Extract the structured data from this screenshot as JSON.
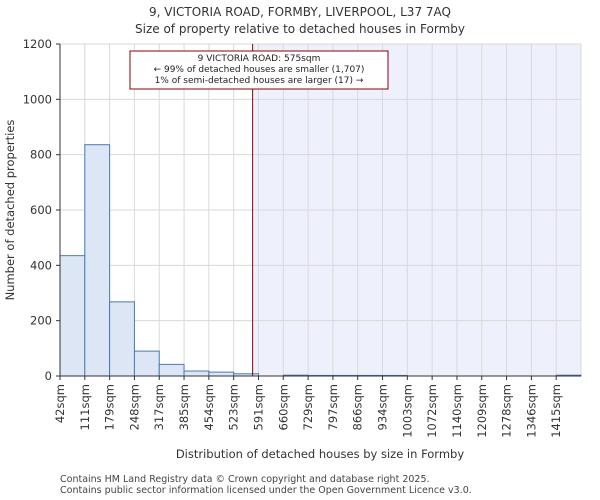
{
  "chart_data": {
    "type": "bar",
    "title": "9, VICTORIA ROAD, FORMBY, LIVERPOOL, L37 7AQ",
    "subtitle": "Size of property relative to detached houses in Formby",
    "xlabel": "Distribution of detached houses by size in Formby",
    "ylabel": "Number of detached properties",
    "ylim": [
      0,
      1200
    ],
    "yticks": [
      0,
      200,
      400,
      600,
      800,
      1000,
      1200
    ],
    "categories": [
      "42sqm",
      "111sqm",
      "179sqm",
      "248sqm",
      "317sqm",
      "385sqm",
      "454sqm",
      "523sqm",
      "591sqm",
      "660sqm",
      "729sqm",
      "797sqm",
      "866sqm",
      "934sqm",
      "1003sqm",
      "1072sqm",
      "1140sqm",
      "1209sqm",
      "1278sqm",
      "1346sqm",
      "1415sqm"
    ],
    "values": [
      435,
      836,
      268,
      90,
      42,
      18,
      14,
      8,
      0,
      3,
      2,
      2,
      2,
      2,
      0,
      0,
      0,
      0,
      0,
      0,
      3
    ],
    "property_marker": {
      "size_sqm": 575,
      "color": "#8b0000",
      "label_lines": [
        "9 VICTORIA ROAD: 575sqm",
        "← 99% of detached houses are smaller (1,707)",
        "1% of semi-detached houses are larger (17) →"
      ]
    },
    "colors": {
      "bar_fill": "#dce6f5",
      "bar_stroke": "#4a7ab8",
      "highlight_region": "#eef1fb",
      "grid": "#d9d9d9"
    },
    "grid": true
  },
  "footer": {
    "line1": "Contains HM Land Registry data © Crown copyright and database right 2025.",
    "line2": "Contains public sector information licensed under the Open Government Licence v3.0."
  }
}
